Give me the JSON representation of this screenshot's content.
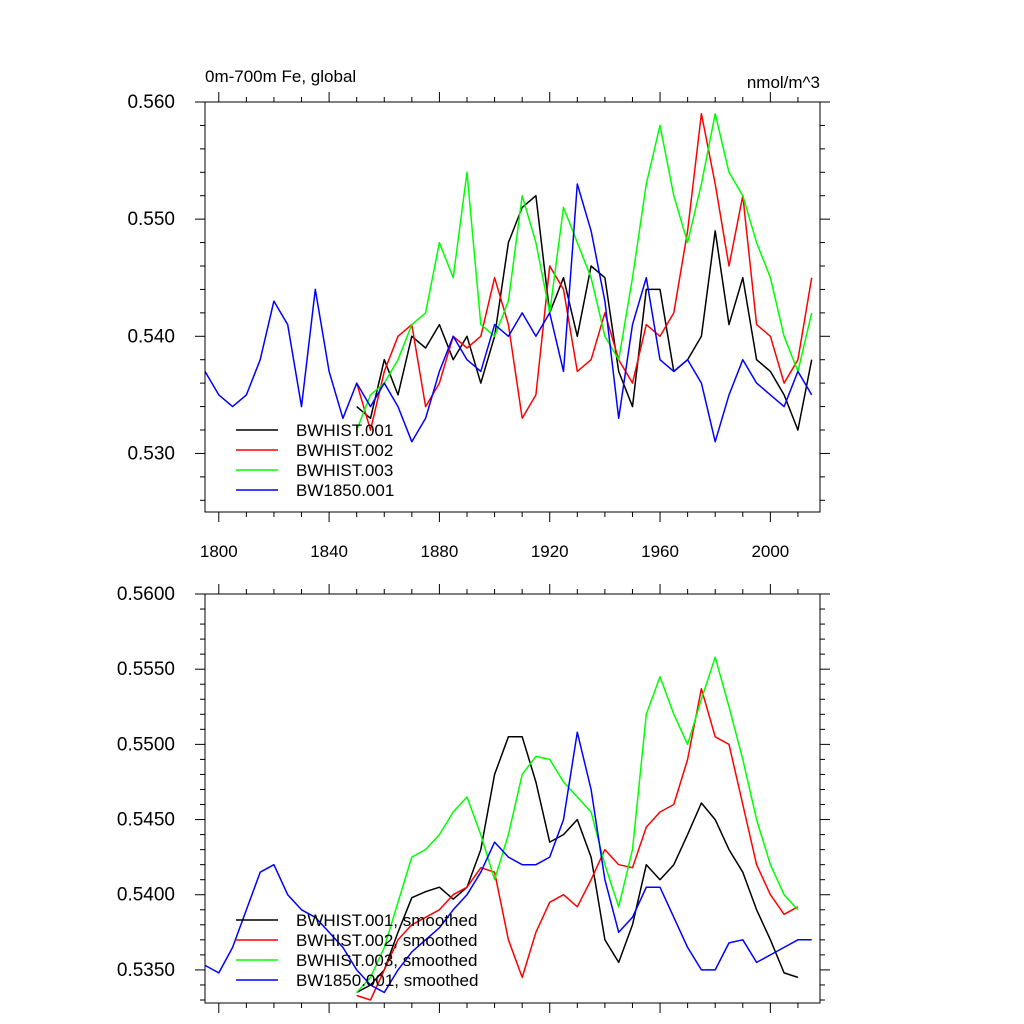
{
  "chart_data": [
    {
      "type": "line",
      "title": "0m-700m Fe, global",
      "units": "nmol/m^3",
      "xlabel": "",
      "ylabel": "",
      "xlim": [
        1795,
        2018
      ],
      "ylim": [
        0.525,
        0.56
      ],
      "xticks": [
        1800,
        1840,
        1880,
        1920,
        1960,
        2000
      ],
      "xtick_labels": [
        "1800",
        "1840",
        "1880",
        "1920",
        "1960",
        "2000"
      ],
      "yticks": [
        0.53,
        0.54,
        0.55,
        0.56
      ],
      "ytick_labels": [
        "0.530",
        "0.540",
        "0.550",
        "0.560"
      ],
      "grid": false,
      "legend": "bottom-left",
      "series": [
        {
          "name": "BWHIST.001",
          "color": "#000000",
          "x": [
            1850,
            1855,
            1860,
            1865,
            1870,
            1875,
            1880,
            1885,
            1890,
            1895,
            1900,
            1905,
            1910,
            1915,
            1920,
            1925,
            1930,
            1935,
            1940,
            1945,
            1950,
            1955,
            1960,
            1965,
            1970,
            1975,
            1980,
            1985,
            1990,
            1995,
            2000,
            2005,
            2010,
            2015
          ],
          "y": [
            0.534,
            0.533,
            0.538,
            0.535,
            0.54,
            0.539,
            0.541,
            0.538,
            0.54,
            0.536,
            0.54,
            0.548,
            0.551,
            0.552,
            0.542,
            0.545,
            0.54,
            0.546,
            0.545,
            0.537,
            0.534,
            0.544,
            0.544,
            0.537,
            0.538,
            0.54,
            0.549,
            0.541,
            0.545,
            0.538,
            0.537,
            0.535,
            0.532,
            0.538
          ]
        },
        {
          "name": "BWHIST.002",
          "color": "#ff0000",
          "x": [
            1850,
            1855,
            1860,
            1865,
            1870,
            1875,
            1880,
            1885,
            1890,
            1895,
            1900,
            1905,
            1910,
            1915,
            1920,
            1925,
            1930,
            1935,
            1940,
            1945,
            1950,
            1955,
            1960,
            1965,
            1970,
            1975,
            1980,
            1985,
            1990,
            1995,
            2000,
            2005,
            2010,
            2015
          ],
          "y": [
            0.536,
            0.532,
            0.537,
            0.54,
            0.541,
            0.534,
            0.536,
            0.54,
            0.539,
            0.54,
            0.545,
            0.541,
            0.533,
            0.535,
            0.546,
            0.544,
            0.537,
            0.538,
            0.542,
            0.538,
            0.536,
            0.541,
            0.54,
            0.542,
            0.549,
            0.559,
            0.553,
            0.546,
            0.552,
            0.541,
            0.54,
            0.536,
            0.538,
            0.545
          ]
        },
        {
          "name": "BWHIST.003",
          "color": "#00ff00",
          "x": [
            1850,
            1855,
            1860,
            1865,
            1870,
            1875,
            1880,
            1885,
            1890,
            1895,
            1900,
            1905,
            1910,
            1915,
            1920,
            1925,
            1930,
            1935,
            1940,
            1945,
            1950,
            1955,
            1960,
            1965,
            1970,
            1975,
            1980,
            1985,
            1990,
            1995,
            2000,
            2005,
            2010,
            2015
          ],
          "y": [
            0.532,
            0.535,
            0.536,
            0.538,
            0.541,
            0.542,
            0.548,
            0.545,
            0.554,
            0.541,
            0.54,
            0.543,
            0.552,
            0.548,
            0.542,
            0.551,
            0.548,
            0.545,
            0.54,
            0.538,
            0.545,
            0.553,
            0.558,
            0.552,
            0.548,
            0.553,
            0.559,
            0.554,
            0.552,
            0.548,
            0.545,
            0.54,
            0.537,
            0.542
          ]
        },
        {
          "name": "BW1850.001",
          "color": "#0000ff",
          "x": [
            1795,
            1800,
            1805,
            1810,
            1815,
            1820,
            1825,
            1830,
            1835,
            1840,
            1845,
            1850,
            1855,
            1860,
            1865,
            1870,
            1875,
            1880,
            1885,
            1890,
            1895,
            1900,
            1905,
            1910,
            1915,
            1920,
            1925,
            1930,
            1935,
            1940,
            1945,
            1950,
            1955,
            1960,
            1965,
            1970,
            1975,
            1980,
            1985,
            1990,
            1995,
            2000,
            2005,
            2010,
            2015
          ],
          "y": [
            0.537,
            0.535,
            0.534,
            0.535,
            0.538,
            0.543,
            0.541,
            0.534,
            0.544,
            0.537,
            0.533,
            0.536,
            0.534,
            0.536,
            0.534,
            0.531,
            0.533,
            0.537,
            0.54,
            0.538,
            0.537,
            0.541,
            0.54,
            0.542,
            0.54,
            0.542,
            0.537,
            0.553,
            0.549,
            0.543,
            0.533,
            0.541,
            0.545,
            0.538,
            0.537,
            0.538,
            0.536,
            0.531,
            0.535,
            0.538,
            0.536,
            0.535,
            0.534,
            0.537,
            0.535
          ]
        }
      ]
    },
    {
      "type": "line",
      "title": "",
      "xlabel": "",
      "ylabel": "",
      "xlim": [
        1795,
        2018
      ],
      "ylim": [
        0.5328,
        0.56
      ],
      "xticks": [
        1800,
        1840,
        1880,
        1920,
        1960,
        2000
      ],
      "yticks": [
        0.535,
        0.54,
        0.545,
        0.55,
        0.555,
        0.56
      ],
      "ytick_labels": [
        "0.5350",
        "0.5400",
        "0.5450",
        "0.5500",
        "0.5550",
        "0.5600"
      ],
      "grid": false,
      "legend": "bottom-left",
      "series": [
        {
          "name": "BWHIST.001, smoothed",
          "color": "#000000",
          "x": [
            1850,
            1855,
            1860,
            1865,
            1870,
            1875,
            1880,
            1885,
            1890,
            1895,
            1900,
            1905,
            1910,
            1915,
            1920,
            1925,
            1930,
            1935,
            1940,
            1945,
            1950,
            1955,
            1960,
            1965,
            1970,
            1975,
            1980,
            1985,
            1990,
            1995,
            2000,
            2005,
            2010
          ],
          "y": [
            0.5335,
            0.534,
            0.535,
            0.5375,
            0.5398,
            0.5402,
            0.5405,
            0.5397,
            0.5405,
            0.543,
            0.548,
            0.5505,
            0.5505,
            0.5475,
            0.5435,
            0.544,
            0.545,
            0.5425,
            0.537,
            0.5355,
            0.538,
            0.542,
            0.541,
            0.542,
            0.544,
            0.5461,
            0.545,
            0.543,
            0.5415,
            0.539,
            0.537,
            0.5348,
            0.5345
          ]
        },
        {
          "name": "BWHIST.002, smoothed",
          "color": "#ff0000",
          "x": [
            1850,
            1855,
            1860,
            1865,
            1870,
            1875,
            1880,
            1885,
            1890,
            1895,
            1900,
            1905,
            1910,
            1915,
            1920,
            1925,
            1930,
            1935,
            1940,
            1945,
            1950,
            1955,
            1960,
            1965,
            1970,
            1975,
            1980,
            1985,
            1990,
            1995,
            2000,
            2005,
            2010
          ],
          "y": [
            0.5333,
            0.533,
            0.535,
            0.537,
            0.538,
            0.5385,
            0.539,
            0.54,
            0.5405,
            0.5418,
            0.5415,
            0.537,
            0.5345,
            0.5375,
            0.5395,
            0.54,
            0.5392,
            0.541,
            0.543,
            0.542,
            0.5418,
            0.5445,
            0.5455,
            0.546,
            0.549,
            0.5537,
            0.5505,
            0.55,
            0.546,
            0.542,
            0.54,
            0.5387,
            0.5392
          ]
        },
        {
          "name": "BWHIST.003, smoothed",
          "color": "#00ff00",
          "x": [
            1850,
            1855,
            1860,
            1865,
            1870,
            1875,
            1880,
            1885,
            1890,
            1895,
            1900,
            1905,
            1910,
            1915,
            1920,
            1925,
            1930,
            1935,
            1940,
            1945,
            1950,
            1955,
            1960,
            1965,
            1970,
            1975,
            1980,
            1985,
            1990,
            1995,
            2000,
            2005,
            2010
          ],
          "y": [
            0.5335,
            0.5345,
            0.5365,
            0.5395,
            0.5425,
            0.543,
            0.544,
            0.5455,
            0.5465,
            0.544,
            0.541,
            0.544,
            0.548,
            0.5492,
            0.549,
            0.5475,
            0.5465,
            0.5455,
            0.542,
            0.5392,
            0.543,
            0.552,
            0.5545,
            0.552,
            0.55,
            0.553,
            0.5558,
            0.5525,
            0.549,
            0.545,
            0.542,
            0.54,
            0.539
          ]
        },
        {
          "name": "BW1850.001, smoothed",
          "color": "#0000ff",
          "x": [
            1795,
            1800,
            1805,
            1810,
            1815,
            1820,
            1825,
            1830,
            1835,
            1840,
            1845,
            1850,
            1855,
            1860,
            1865,
            1870,
            1875,
            1880,
            1885,
            1890,
            1895,
            1900,
            1905,
            1910,
            1915,
            1920,
            1925,
            1930,
            1935,
            1940,
            1945,
            1950,
            1955,
            1960,
            1965,
            1970,
            1975,
            1980,
            1985,
            1990,
            1995,
            2000,
            2005,
            2010,
            2015
          ],
          "y": [
            0.5353,
            0.5348,
            0.5365,
            0.539,
            0.5415,
            0.542,
            0.54,
            0.539,
            0.5385,
            0.5375,
            0.5365,
            0.535,
            0.534,
            0.5335,
            0.535,
            0.5362,
            0.537,
            0.5378,
            0.539,
            0.54,
            0.5415,
            0.5435,
            0.5425,
            0.542,
            0.542,
            0.5425,
            0.545,
            0.5508,
            0.547,
            0.541,
            0.5375,
            0.5385,
            0.5405,
            0.5405,
            0.5385,
            0.5365,
            0.535,
            0.535,
            0.5368,
            0.537,
            0.5355,
            0.536,
            0.5365,
            0.537,
            0.537
          ]
        }
      ]
    }
  ]
}
